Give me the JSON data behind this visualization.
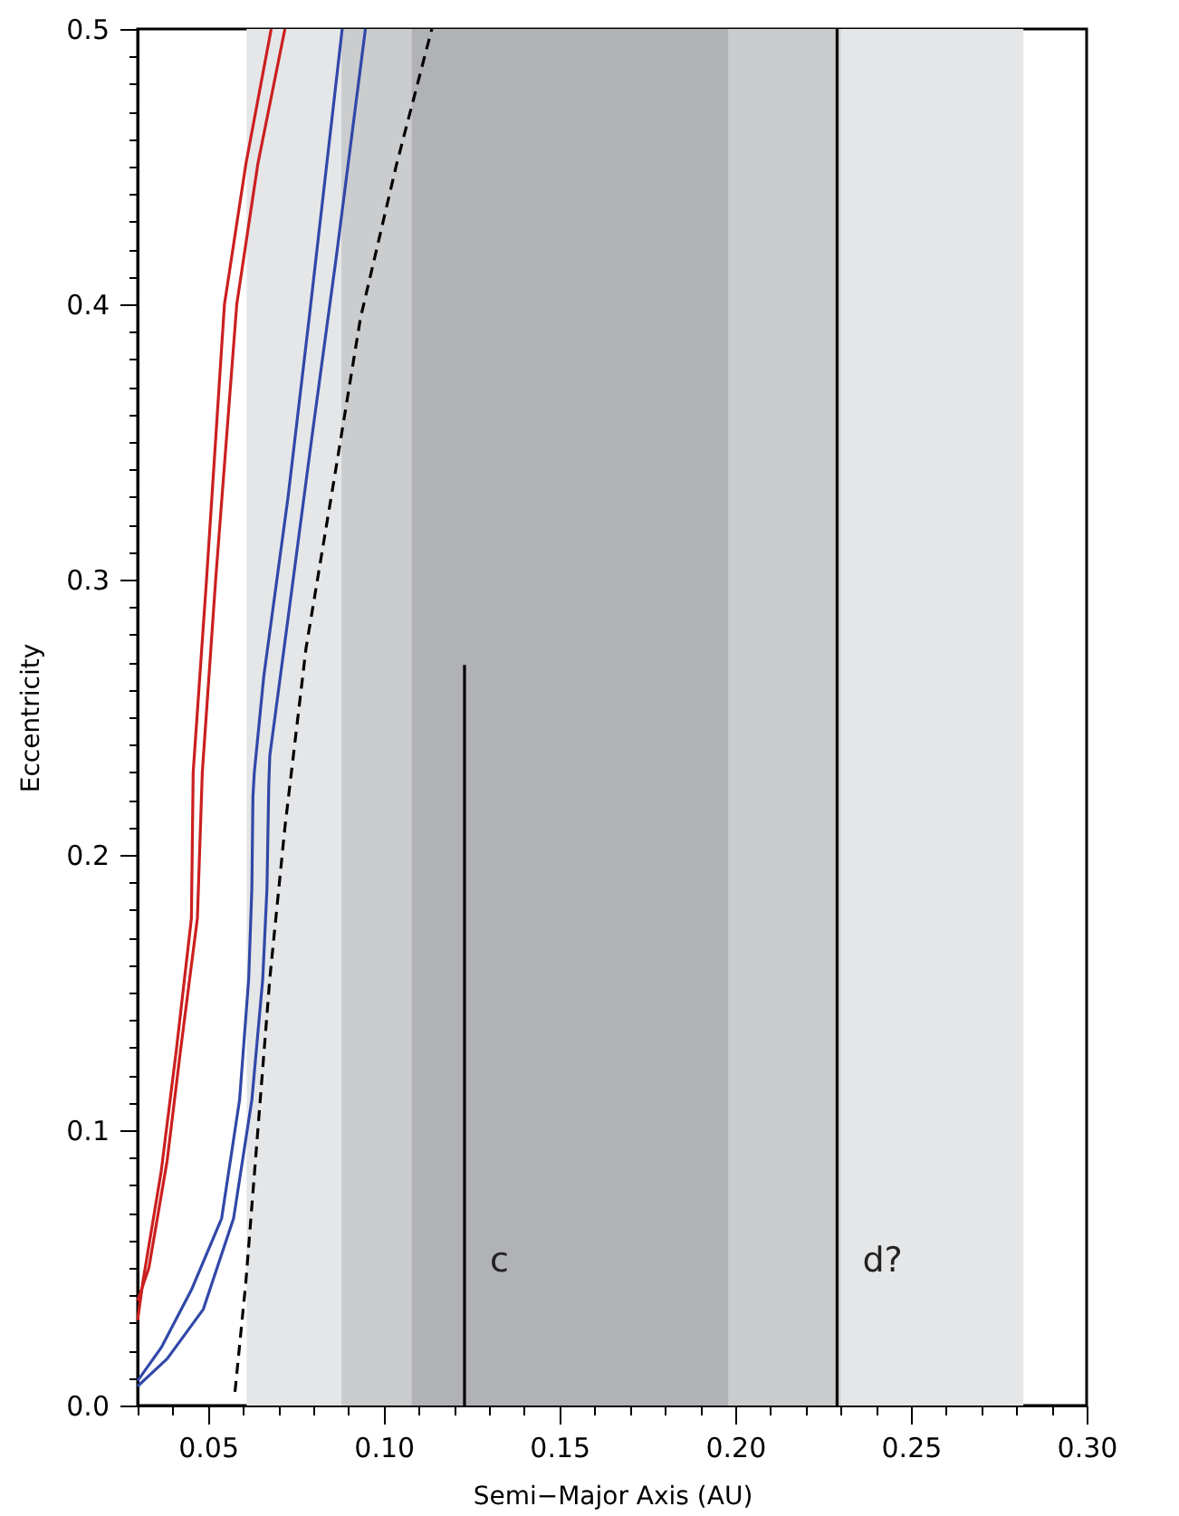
{
  "chart_data": {
    "type": "line",
    "xlabel": "Semi−Major Axis (AU)",
    "ylabel": "Eccentricity",
    "xlim": [
      0.03,
      0.3
    ],
    "ylim": [
      0,
      0.5
    ],
    "xticks": [
      {
        "value": 0.03,
        "label": null
      },
      {
        "value": 0.04,
        "label": null
      },
      {
        "value": 0.05,
        "label": "0.05"
      },
      {
        "value": 0.06,
        "label": null
      },
      {
        "value": 0.07,
        "label": null
      },
      {
        "value": 0.08,
        "label": null
      },
      {
        "value": 0.09,
        "label": null
      },
      {
        "value": 0.1,
        "label": "0.10"
      },
      {
        "value": 0.11,
        "label": null
      },
      {
        "value": 0.12,
        "label": null
      },
      {
        "value": 0.13,
        "label": null
      },
      {
        "value": 0.14,
        "label": null
      },
      {
        "value": 0.15,
        "label": "0.15"
      },
      {
        "value": 0.16,
        "label": null
      },
      {
        "value": 0.17,
        "label": null
      },
      {
        "value": 0.18,
        "label": null
      },
      {
        "value": 0.19,
        "label": null
      },
      {
        "value": 0.2,
        "label": "0.20"
      },
      {
        "value": 0.21,
        "label": null
      },
      {
        "value": 0.22,
        "label": null
      },
      {
        "value": 0.23,
        "label": null
      },
      {
        "value": 0.24,
        "label": null
      },
      {
        "value": 0.25,
        "label": "0.25"
      },
      {
        "value": 0.26,
        "label": null
      },
      {
        "value": 0.27,
        "label": null
      },
      {
        "value": 0.28,
        "label": null
      },
      {
        "value": 0.29,
        "label": null
      },
      {
        "value": 0.3,
        "label": "0.30"
      }
    ],
    "yticks": [
      {
        "value": 0,
        "label": "0.0"
      },
      {
        "value": 0.01,
        "label": null
      },
      {
        "value": 0.02,
        "label": null
      },
      {
        "value": 0.03,
        "label": null
      },
      {
        "value": 0.04,
        "label": null
      },
      {
        "value": 0.05,
        "label": null
      },
      {
        "value": 0.06,
        "label": null
      },
      {
        "value": 0.07,
        "label": null
      },
      {
        "value": 0.08,
        "label": null
      },
      {
        "value": 0.09,
        "label": null
      },
      {
        "value": 0.1,
        "label": "0.1"
      },
      {
        "value": 0.11,
        "label": null
      },
      {
        "value": 0.12,
        "label": null
      },
      {
        "value": 0.13,
        "label": null
      },
      {
        "value": 0.14,
        "label": null
      },
      {
        "value": 0.15,
        "label": null
      },
      {
        "value": 0.16,
        "label": null
      },
      {
        "value": 0.17,
        "label": null
      },
      {
        "value": 0.18,
        "label": null
      },
      {
        "value": 0.19,
        "label": null
      },
      {
        "value": 0.2,
        "label": "0.2"
      },
      {
        "value": 0.21,
        "label": null
      },
      {
        "value": 0.22,
        "label": null
      },
      {
        "value": 0.23,
        "label": null
      },
      {
        "value": 0.24,
        "label": null
      },
      {
        "value": 0.25,
        "label": null
      },
      {
        "value": 0.26,
        "label": null
      },
      {
        "value": 0.27,
        "label": null
      },
      {
        "value": 0.28,
        "label": null
      },
      {
        "value": 0.29,
        "label": null
      },
      {
        "value": 0.3,
        "label": "0.3"
      },
      {
        "value": 0.31,
        "label": null
      },
      {
        "value": 0.32,
        "label": null
      },
      {
        "value": 0.33,
        "label": null
      },
      {
        "value": 0.34,
        "label": null
      },
      {
        "value": 0.35,
        "label": null
      },
      {
        "value": 0.36,
        "label": null
      },
      {
        "value": 0.37,
        "label": null
      },
      {
        "value": 0.38,
        "label": null
      },
      {
        "value": 0.39,
        "label": null
      },
      {
        "value": 0.4,
        "label": "0.4"
      },
      {
        "value": 0.41,
        "label": null
      },
      {
        "value": 0.42,
        "label": null
      },
      {
        "value": 0.43,
        "label": null
      },
      {
        "value": 0.44,
        "label": null
      },
      {
        "value": 0.45,
        "label": null
      },
      {
        "value": 0.46,
        "label": null
      },
      {
        "value": 0.47,
        "label": null
      },
      {
        "value": 0.48,
        "label": null
      },
      {
        "value": 0.49,
        "label": null
      },
      {
        "value": 0.5,
        "label": "0.5"
      }
    ],
    "bands": [
      {
        "axis": "x",
        "from": 0.061,
        "to": 0.282,
        "color": "#e5e6e8"
      },
      {
        "axis": "x",
        "from": 0.088,
        "to": 0.23,
        "color": "#cbccce"
      },
      {
        "axis": "x",
        "from": 0.108,
        "to": 0.198,
        "color": "#b1b2b6"
      }
    ],
    "series": [
      {
        "color": "#cc1f1f",
        "line_style": "solid",
        "x": [
          0.03,
          0.0315,
          0.0367,
          0.041,
          0.0453,
          0.0458,
          0.0496,
          0.0547,
          0.0608,
          0.068
        ],
        "values": [
          0.031,
          0.045,
          0.085,
          0.129,
          0.177,
          0.23,
          0.3,
          0.4,
          0.451,
          0.5
        ]
      },
      {
        "color": "#cc1f1f",
        "line_style": "solid",
        "x": [
          0.03,
          0.0332,
          0.0384,
          0.0422,
          0.047,
          0.0484,
          0.0522,
          0.0582,
          0.0642,
          0.0719
        ],
        "values": [
          0.038,
          0.05,
          0.089,
          0.129,
          0.177,
          0.23,
          0.3,
          0.4,
          0.451,
          0.5
        ]
      },
      {
        "color": "#3048a8",
        "line_style": "solid",
        "x": [
          0.03,
          0.0367,
          0.0453,
          0.0539,
          0.059,
          0.0616,
          0.0625,
          0.0628,
          0.0632,
          0.0659,
          0.0728,
          0.0788,
          0.0882
        ],
        "values": [
          0.009,
          0.021,
          0.042,
          0.068,
          0.111,
          0.155,
          0.188,
          0.221,
          0.23,
          0.265,
          0.33,
          0.395,
          0.5
        ]
      },
      {
        "color": "#3048a8",
        "line_style": "solid",
        "x": [
          0.03,
          0.0384,
          0.0487,
          0.0573,
          0.0625,
          0.0656,
          0.0668,
          0.0673,
          0.0676,
          0.0728,
          0.0796,
          0.0866,
          0.0948
        ],
        "values": [
          0.007,
          0.017,
          0.035,
          0.068,
          0.111,
          0.155,
          0.188,
          0.225,
          0.236,
          0.286,
          0.352,
          0.418,
          0.5
        ]
      },
      {
        "color": "#000000",
        "line_style": "dashed",
        "x": [
          0.0577,
          0.0608,
          0.0642,
          0.0676,
          0.0719,
          0.0779,
          0.0865,
          0.0934,
          0.1037,
          0.1137
        ],
        "values": [
          0.005,
          0.045,
          0.1,
          0.155,
          0.21,
          0.275,
          0.341,
          0.395,
          0.451,
          0.5
        ]
      },
      {
        "name": "c",
        "color": "#000000",
        "line_style": "solid",
        "x": [
          0.123,
          0.123
        ],
        "values": [
          0,
          0.269
        ]
      }
    ],
    "ref_lines": [
      {
        "axis": "x",
        "value": 0.229,
        "label": "d?",
        "color": "#000000"
      }
    ]
  }
}
